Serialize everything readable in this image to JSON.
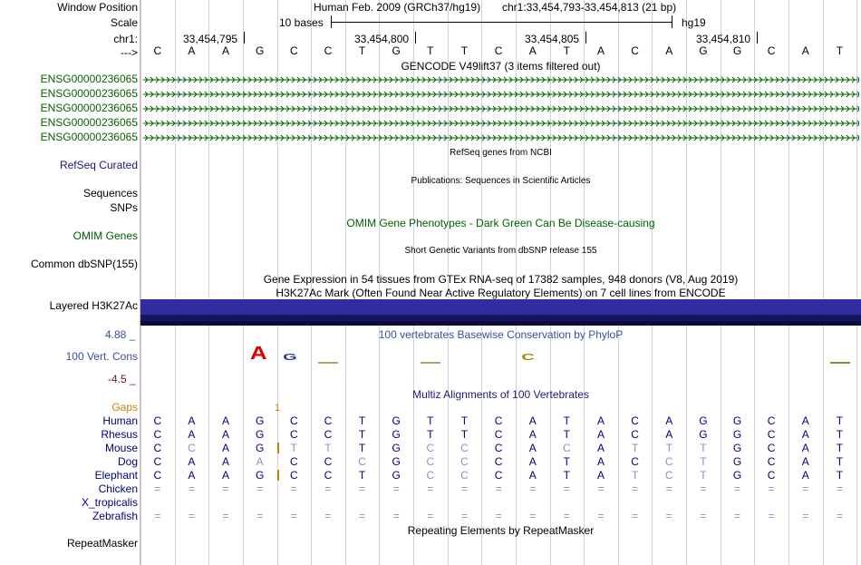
{
  "header": {
    "window_position_label": "Window Position",
    "assembly": "Human Feb. 2009 (GRCh37/hg19)",
    "position": "chr1:33,454,793-33,454,813 (21 bp)",
    "scale_label": "Scale",
    "scale_text": "10 bases",
    "scale_db": "hg19",
    "chrom_label": "chr1:",
    "coords": [
      "33,454,795",
      "33,454,800",
      "33,454,805",
      "33,454,810"
    ],
    "strand_label": "--->",
    "bases": [
      "C",
      "A",
      "A",
      "G",
      "C",
      "C",
      "T",
      "G",
      "T",
      "T",
      "C",
      "A",
      "T",
      "A",
      "C",
      "A",
      "G",
      "G",
      "C",
      "A",
      "T"
    ]
  },
  "gencode": {
    "title": "GENCODE V49lift37 (3 items filtered out)",
    "genes": [
      "ENSG00000236065",
      "ENSG00000236065",
      "ENSG00000236065",
      "ENSG00000236065",
      "ENSG00000236065"
    ],
    "color": "#006400"
  },
  "refseq": {
    "title": "RefSeq genes from NCBI",
    "label": "RefSeq Curated"
  },
  "publications": {
    "title": "Publications: Sequences in Scientific Articles",
    "label_seq": "Sequences",
    "label_snp": "SNPs"
  },
  "omim": {
    "title": "OMIM Gene Phenotypes - Dark Green Can Be Disease-causing",
    "label": "OMIM Genes"
  },
  "dbsnp": {
    "title": "Short Genetic Variants from dbSNP release 155",
    "label": "Common dbSNP(155)"
  },
  "gtex": {
    "title": "Gene Expression in 54 tissues from GTEx RNA-seq of 17382 samples, 948 donors (V8, Aug 2019)"
  },
  "h3k27ac": {
    "title": "H3K27Ac Mark (Often Found Near Active Regulatory Elements) on 7 cell lines from ENCODE",
    "label": "Layered H3K27Ac"
  },
  "phylop": {
    "title": "100 vertebrates Basewise Conservation by PhyloP",
    "label": "100 Vert. Cons",
    "max": "4.88 _",
    "min": "-4.5 _",
    "logo_letters": [
      {
        "pos": 3,
        "letter": "A",
        "color": "#e00000"
      },
      {
        "pos": 4,
        "letter": "G",
        "color": "#2b3aa8"
      },
      {
        "pos": 11,
        "letter": "C",
        "color": "#a08a00"
      }
    ]
  },
  "multiz": {
    "title": "Multiz Alignments of 100 Vertebrates",
    "gaps_label": "Gaps",
    "gap_count": "1",
    "species": [
      {
        "name": "Human",
        "bases": [
          "C",
          "A",
          "A",
          "G",
          "C",
          "C",
          "T",
          "G",
          "T",
          "T",
          "C",
          "A",
          "T",
          "A",
          "C",
          "A",
          "G",
          "G",
          "C",
          "A",
          "T"
        ]
      },
      {
        "name": "Rhesus",
        "bases": [
          "C",
          "A",
          "A",
          "G",
          "C",
          "C",
          "T",
          "G",
          "T",
          "T",
          "C",
          "A",
          "T",
          "A",
          "C",
          "A",
          "G",
          "G",
          "C",
          "A",
          "T"
        ]
      },
      {
        "name": "Mouse",
        "bases": [
          "C",
          "C",
          "A",
          "G",
          "T",
          "T",
          "T",
          "G",
          "C",
          "C",
          "C",
          "A",
          "C",
          "A",
          "T",
          "T",
          "T",
          "G",
          "C",
          "A",
          "T"
        ]
      },
      {
        "name": "Dog",
        "bases": [
          "C",
          "A",
          "A",
          "A",
          "C",
          "C",
          "C",
          "G",
          "C",
          "C",
          "C",
          "A",
          "T",
          "A",
          "C",
          "C",
          "T",
          "G",
          "C",
          "A",
          "T"
        ]
      },
      {
        "name": "Elephant",
        "bases": [
          "C",
          "A",
          "A",
          "G",
          "C",
          "C",
          "T",
          "G",
          "C",
          "C",
          "C",
          "A",
          "T",
          "A",
          "T",
          "C",
          "T",
          "G",
          "C",
          "A",
          "T"
        ]
      },
      {
        "name": "Chicken",
        "bases": [
          "=",
          "=",
          "=",
          "=",
          "=",
          "=",
          "=",
          "=",
          "=",
          "=",
          "=",
          "=",
          "=",
          "=",
          "=",
          "=",
          "=",
          "=",
          "=",
          "=",
          "="
        ]
      },
      {
        "name": "X_tropicalis",
        "bases": []
      },
      {
        "name": "Zebrafish",
        "bases": [
          "=",
          "=",
          "=",
          "=",
          "=",
          "=",
          "=",
          "=",
          "=",
          "=",
          "=",
          "=",
          "=",
          "=",
          "=",
          "=",
          "=",
          "=",
          "=",
          "=",
          "="
        ]
      }
    ],
    "mismatch_color": "#8a8fc8",
    "match_color": "#000080"
  },
  "repeatmasker": {
    "title": "Repeating Elements by RepeatMasker",
    "label": "RepeatMasker"
  }
}
